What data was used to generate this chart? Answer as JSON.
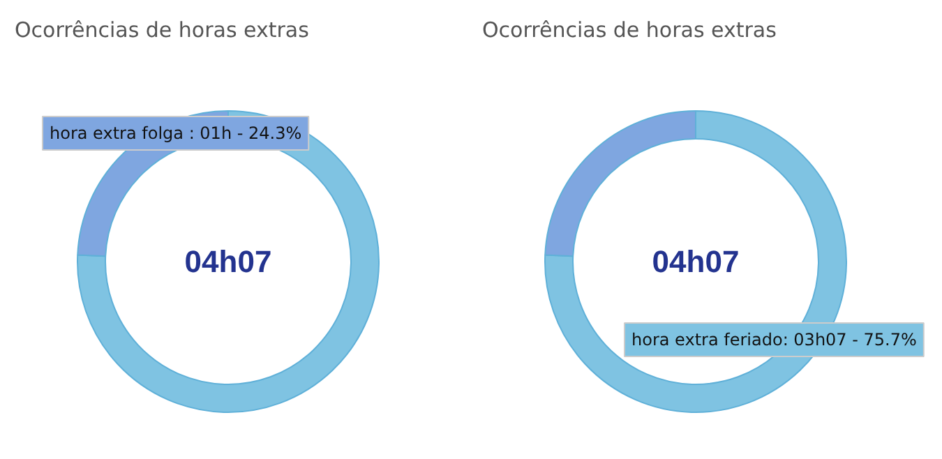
{
  "chart_data": [
    {
      "type": "donut",
      "title": "Ocorrências de horas extras",
      "categories": [
        null,
        null
      ],
      "values": [
        75.7,
        24.3
      ],
      "colors": [
        "#7fc3e2",
        "#7fa6e0"
      ],
      "annotations": [
        "04h07",
        "hora extra folga : 01h - 24.3%"
      ]
    },
    {
      "type": "donut",
      "title": "Ocorrências de horas extras",
      "categories": [
        null,
        null
      ],
      "values": [
        75.7,
        24.3
      ],
      "colors": [
        "#7fc3e2",
        "#7fa6e0"
      ],
      "annotations": [
        "04h07",
        "hora extra feriado: 03h07 - 75.7%"
      ]
    }
  ]
}
